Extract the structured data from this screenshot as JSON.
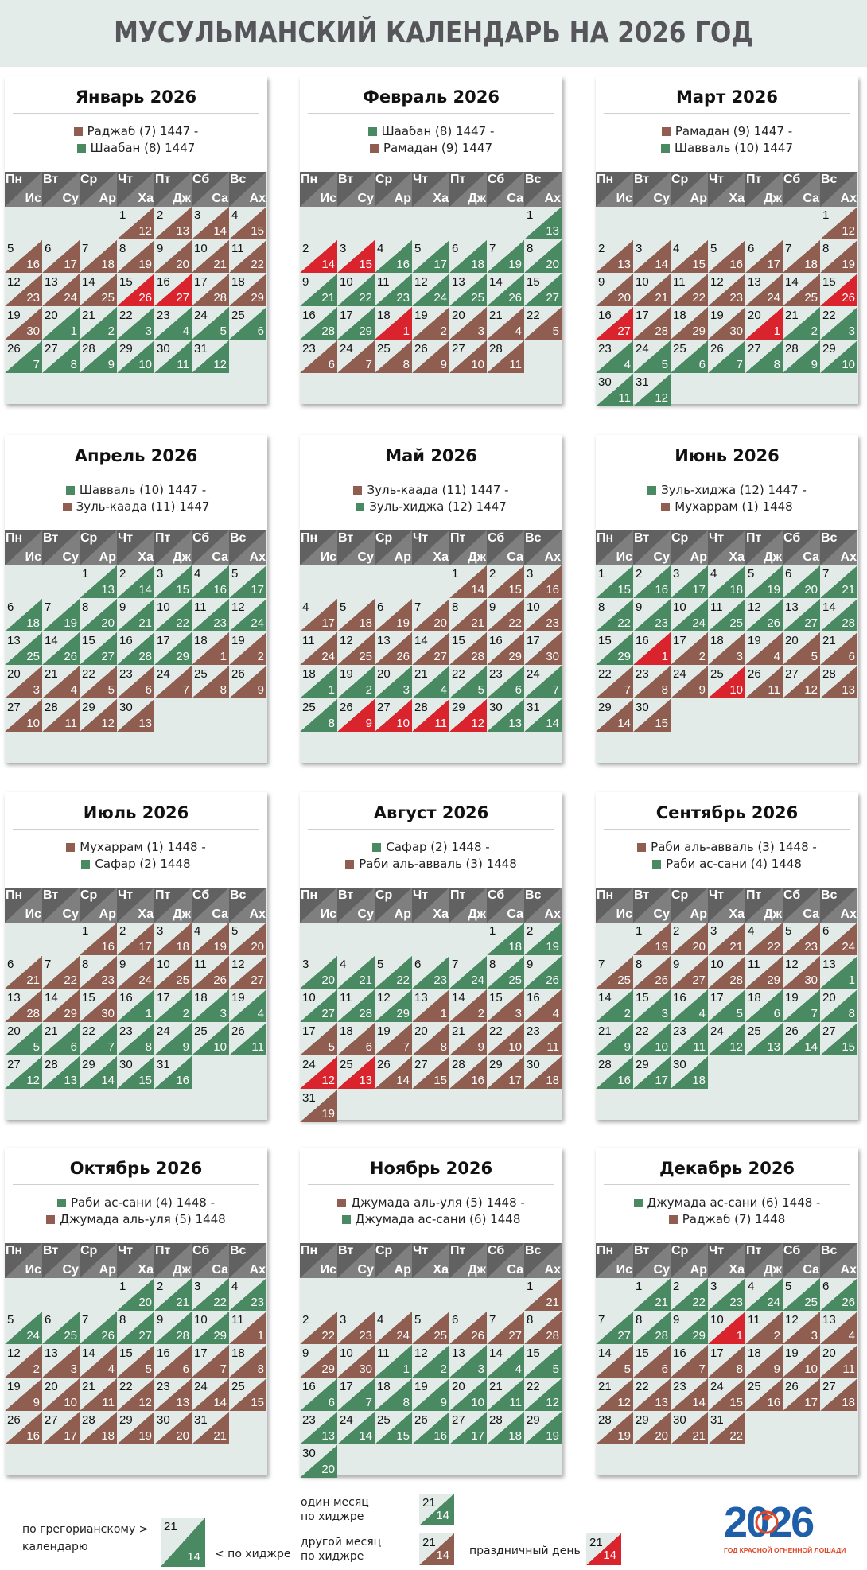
{
  "title": "МУСУЛЬМАНСКИЙ КАЛЕНДАРЬ НА 2026 ГОД",
  "colors": {
    "green": "#4a8a63",
    "brown": "#8f5e51",
    "red": "#d9232d",
    "grid_bg": "#e2ebe7",
    "header": "#616161"
  },
  "weekdays": [
    {
      "g": "Пн",
      "h": "Ис"
    },
    {
      "g": "Вт",
      "h": "Су"
    },
    {
      "g": "Ср",
      "h": "Ар"
    },
    {
      "g": "Чт",
      "h": "Ха"
    },
    {
      "g": "Пт",
      "h": "Дж"
    },
    {
      "g": "Сб",
      "h": "Са"
    },
    {
      "g": "Вс",
      "h": "Ах"
    }
  ],
  "months": [
    {
      "title": "Январь 2026",
      "first_weekday": 4,
      "days": 31,
      "hijri_lines": [
        {
          "text": "Раджаб (7) 1447 -",
          "color": "brown"
        },
        {
          "text": "Шаабан (8) 1447",
          "color": "green"
        }
      ],
      "hijri_start": 12,
      "hijri_start_color": "brown",
      "hijri_prev_len": 30,
      "holidays": [
        15,
        16
      ]
    },
    {
      "title": "Февраль 2026",
      "first_weekday": 7,
      "days": 28,
      "hijri_lines": [
        {
          "text": "Шаабан (8) 1447 -",
          "color": "green"
        },
        {
          "text": "Рамадан (9) 1447",
          "color": "brown"
        }
      ],
      "hijri_start": 13,
      "hijri_start_color": "green",
      "hijri_prev_len": 29,
      "holidays": [
        2,
        3,
        18
      ]
    },
    {
      "title": "Март 2026",
      "first_weekday": 7,
      "days": 31,
      "hijri_lines": [
        {
          "text": "Рамадан (9) 1447 -",
          "color": "brown"
        },
        {
          "text": "Шавваль (10) 1447",
          "color": "green"
        }
      ],
      "hijri_start": 12,
      "hijri_start_color": "brown",
      "hijri_prev_len": 30,
      "holidays": [
        15,
        16,
        20
      ]
    },
    {
      "title": "Апрель 2026",
      "first_weekday": 3,
      "days": 30,
      "hijri_lines": [
        {
          "text": "Шавваль (10) 1447 -",
          "color": "green"
        },
        {
          "text": "Зуль-каада (11) 1447",
          "color": "brown"
        }
      ],
      "hijri_start": 13,
      "hijri_start_color": "green",
      "hijri_prev_len": 29,
      "holidays": []
    },
    {
      "title": "Май 2026",
      "first_weekday": 5,
      "days": 31,
      "hijri_lines": [
        {
          "text": "Зуль-каада (11) 1447 -",
          "color": "brown"
        },
        {
          "text": "Зуль-хиджа (12) 1447",
          "color": "green"
        }
      ],
      "hijri_start": 14,
      "hijri_start_color": "brown",
      "hijri_prev_len": 30,
      "holidays": [
        26,
        27,
        28,
        29
      ]
    },
    {
      "title": "Июнь 2026",
      "first_weekday": 1,
      "days": 30,
      "hijri_lines": [
        {
          "text": "Зуль-хиджа (12) 1447 -",
          "color": "green"
        },
        {
          "text": "Мухаррам (1) 1448",
          "color": "brown"
        }
      ],
      "hijri_start": 15,
      "hijri_start_color": "green",
      "hijri_prev_len": 29,
      "holidays": [
        16,
        25
      ]
    },
    {
      "title": "Июль 2026",
      "first_weekday": 3,
      "days": 31,
      "hijri_lines": [
        {
          "text": "Мухаррам (1) 1448 -",
          "color": "brown"
        },
        {
          "text": "Сафар (2) 1448",
          "color": "green"
        }
      ],
      "hijri_start": 16,
      "hijri_start_color": "brown",
      "hijri_prev_len": 30,
      "holidays": []
    },
    {
      "title": "Август 2026",
      "first_weekday": 6,
      "days": 31,
      "hijri_lines": [
        {
          "text": "Сафар (2) 1448 -",
          "color": "green"
        },
        {
          "text": "Раби аль-авваль (3) 1448",
          "color": "brown"
        }
      ],
      "hijri_start": 18,
      "hijri_start_color": "green",
      "hijri_prev_len": 29,
      "holidays": [
        24,
        25
      ]
    },
    {
      "title": "Сентябрь 2026",
      "first_weekday": 2,
      "days": 30,
      "hijri_lines": [
        {
          "text": "Раби аль-авваль (3) 1448 -",
          "color": "brown"
        },
        {
          "text": "Раби ас-сани (4) 1448",
          "color": "green"
        }
      ],
      "hijri_start": 19,
      "hijri_start_color": "brown",
      "hijri_prev_len": 30,
      "holidays": []
    },
    {
      "title": "Октябрь 2026",
      "first_weekday": 4,
      "days": 31,
      "hijri_lines": [
        {
          "text": "Раби ас-сани (4) 1448 -",
          "color": "green"
        },
        {
          "text": "Джумада аль-уля (5) 1448",
          "color": "brown"
        }
      ],
      "hijri_start": 20,
      "hijri_start_color": "green",
      "hijri_prev_len": 29,
      "holidays": []
    },
    {
      "title": "Ноябрь 2026",
      "first_weekday": 7,
      "days": 30,
      "hijri_lines": [
        {
          "text": "Джумада аль-уля (5) 1448 -",
          "color": "brown"
        },
        {
          "text": "Джумада ас-сани (6) 1448",
          "color": "green"
        }
      ],
      "hijri_start": 21,
      "hijri_start_color": "brown",
      "hijri_prev_len": 30,
      "holidays": []
    },
    {
      "title": "Декабрь 2026",
      "first_weekday": 2,
      "days": 31,
      "hijri_lines": [
        {
          "text": "Джумада ас-сани (6) 1448 -",
          "color": "green"
        },
        {
          "text": "Раджаб (7) 1448",
          "color": "brown"
        }
      ],
      "hijri_start": 21,
      "hijri_start_color": "green",
      "hijri_prev_len": 29,
      "holidays": [
        10
      ]
    }
  ],
  "legend": {
    "gregorian_label": "по грегорианскому >\nкалендарю",
    "hijri_label": "< по хиджре",
    "same_month_label": "один месяц\nпо хиджре",
    "other_month_label": "другой месяц\nпо хиджре",
    "holiday_label": "праздничный день",
    "sample_g": "21",
    "sample_h": "14"
  },
  "logo": {
    "number": "2026",
    "tagline": "ГОД КРАСНОЙ ОГНЕННОЙ ЛОШАДИ"
  }
}
